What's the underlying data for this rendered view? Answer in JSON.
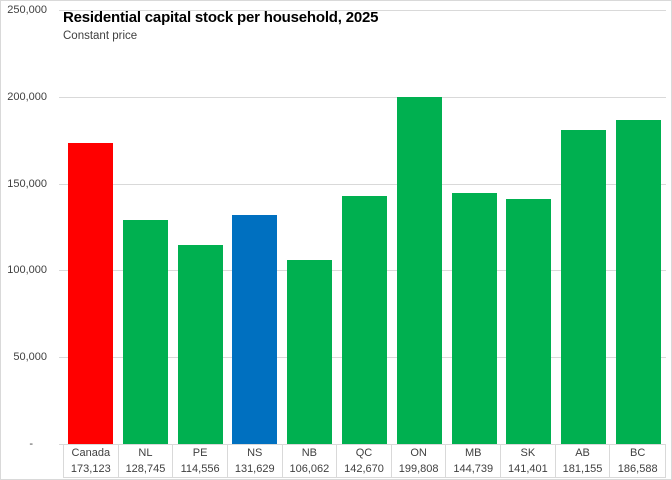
{
  "title": "Residential capital stock per household, 2025",
  "subtitle": "Constant price",
  "colors": {
    "bar_default": "#00B050",
    "bar_canada": "#FF0000",
    "bar_ns": "#0070C0",
    "gridline": "#D9D9D9",
    "axis_text": "#404040",
    "title_text": "#000000",
    "border": "#D9D9D9"
  },
  "chart_data": {
    "type": "bar",
    "title": "Residential capital stock per household, 2025",
    "subtitle": "Constant price",
    "categories": [
      "Canada",
      "NL",
      "PE",
      "NS",
      "NB",
      "QC",
      "ON",
      "MB",
      "SK",
      "AB",
      "BC"
    ],
    "values": [
      173123,
      128745,
      114556,
      131629,
      106062,
      142670,
      199808,
      144739,
      141401,
      181155,
      186588
    ],
    "value_labels": [
      "173,123",
      "128,745",
      "114,556",
      "131,629",
      "106,062",
      "142,670",
      "199,808",
      "144,739",
      "141,401",
      "181,155",
      "186,588"
    ],
    "bar_colors": [
      "#FF0000",
      "#00B050",
      "#00B050",
      "#0070C0",
      "#00B050",
      "#00B050",
      "#00B050",
      "#00B050",
      "#00B050",
      "#00B050",
      "#00B050"
    ],
    "xlabel": "",
    "ylabel": "",
    "ylim": [
      0,
      250000
    ],
    "ytick_values": [
      250000,
      200000,
      150000,
      100000,
      50000,
      0
    ],
    "ytick_labels": [
      "250,000",
      "200,000",
      "150,000",
      "100,000",
      "50,000",
      "-"
    ],
    "grid": true,
    "legend_position": "none",
    "data_table_shown": true
  }
}
